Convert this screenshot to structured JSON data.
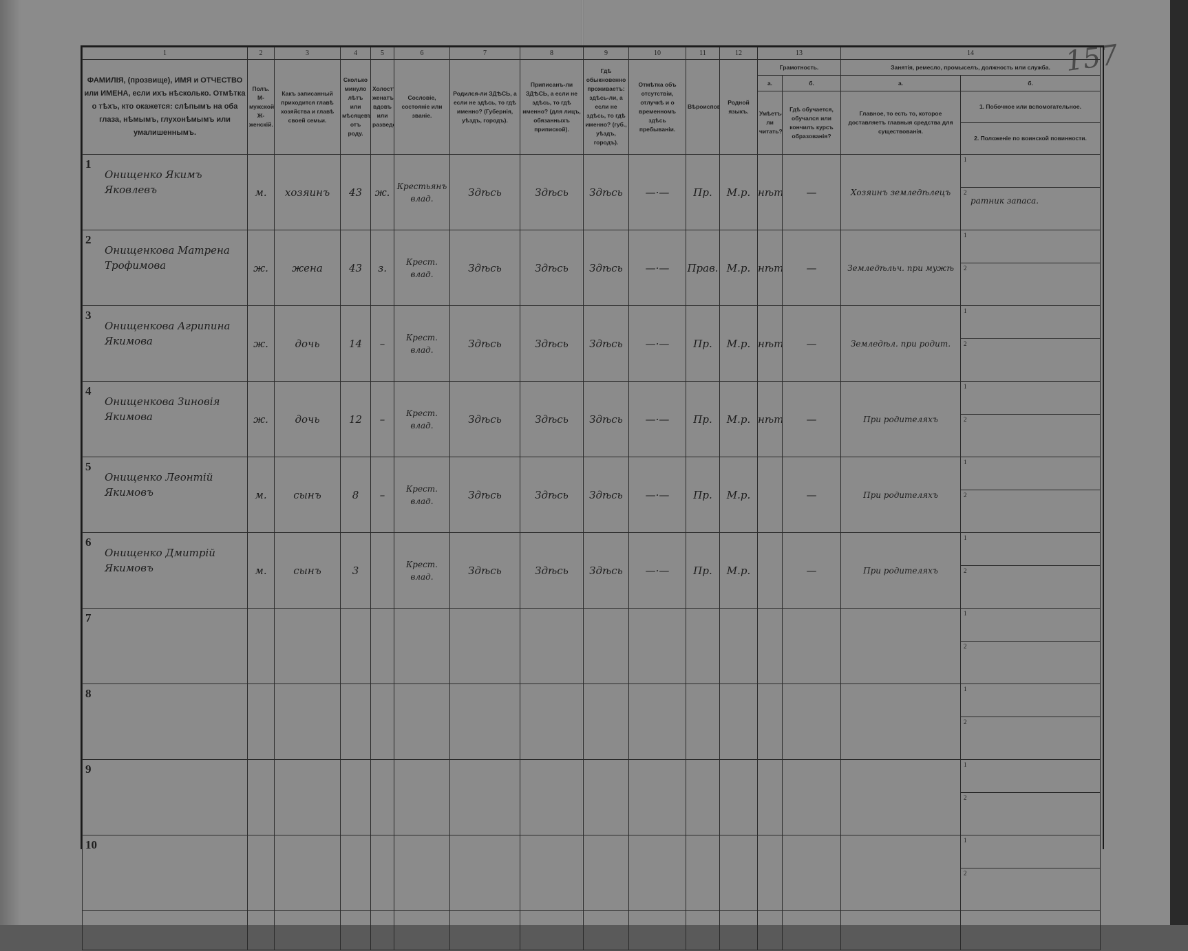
{
  "page_number_handwritten": "157",
  "header": {
    "column_numbers": [
      "1",
      "2",
      "3",
      "4",
      "5",
      "6",
      "7",
      "8",
      "9",
      "10",
      "11",
      "12",
      "13",
      "14"
    ],
    "col1": "ФАМИЛІЯ, (прозвище), ИМЯ и ОТЧЕСТВО или ИМЕНА, если ихъ нѣсколько. Отмѣтка о тѣхъ, кто окажется: слѣпымъ на оба глаза, нѣмымъ, глухонѣмымъ или умалишеннымъ.",
    "col2": "Полъ. М-мужской. Ж-женскій.",
    "col3": "Какъ записанный приходится главѣ хозяйства и главѣ своей семьи.",
    "col4": "Сколько минуло лѣтъ или мѣсяцевъ отъ роду.",
    "col5": "Холостъ, женатъ, вдовъ или разведенъ.",
    "col6": "Сословіе, состояніе или званіе.",
    "col7": "Родился-ли ЗДѢСЬ, а если не здѣсь, то гдѣ именно? (Губернія, уѣздъ, городъ).",
    "col8": "Приписанъ-ли ЗДѢСЬ, а если не здѣсь, то гдѣ именно? (для лицъ, обязанныхъ припиской).",
    "col9": "Гдѣ обыкновенно проживаетъ: здѣсь-ли, а если не здѣсь, то гдѣ именно? (губ., уѣздъ, городъ).",
    "col10": "Отмѣтка объ отсутствіи, отлучкѣ и о временномъ здѣсь пребываніи.",
    "col11": "Вѣроисповѣданіе.",
    "col12": "Родной языкъ.",
    "col13": {
      "title": "Грамотность.",
      "a_label": "а.",
      "b_label": "б.",
      "a": "Умѣетъ-ли читать?",
      "b": "Гдѣ обучается, обучался или кончилъ курсъ образованія?"
    },
    "col14": {
      "title": "Занятія, ремесло, промыселъ, должность или служба.",
      "a_label": "а.",
      "b_label": "б.",
      "a": "Главное, то есть то, которое доставляетъ главныя средства для существованія.",
      "b1": "1. Побочное или вспомогательное.",
      "b2": "2. Положеніе по воинской повинности."
    }
  },
  "sub_labels": [
    "1",
    "2"
  ],
  "rows": [
    {
      "n": "1",
      "name": "Онищенко Якимъ Яковлевъ",
      "sex": "м.",
      "relation": "хозяинъ",
      "age": "43",
      "marital": "ж.",
      "estate": "Крестьянъ влад.",
      "born": "Здѣсь",
      "registered": "Здѣсь",
      "resides": "Здѣсь",
      "absence": "—·—",
      "religion": "Пр.",
      "language": "М.р.",
      "literate": "нѣтъ",
      "school": "—",
      "occupation": "Хозяинъ земледѣлецъ",
      "secondary": "",
      "military": "ратник запаса."
    },
    {
      "n": "2",
      "name": "Онищенкова Матрена Трофимова",
      "sex": "ж.",
      "relation": "жена",
      "age": "43",
      "marital": "з.",
      "estate": "Крест. влад.",
      "born": "Здѣсь",
      "registered": "Здѣсь",
      "resides": "Здѣсь",
      "absence": "—·—",
      "religion": "Прав.",
      "language": "М.р.",
      "literate": "нѣтъ",
      "school": "—",
      "occupation": "Земледѣльч. при мужѣ",
      "secondary": "",
      "military": ""
    },
    {
      "n": "3",
      "name": "Онищенкова Агрипина Якимова",
      "sex": "ж.",
      "relation": "дочь",
      "age": "14",
      "marital": "–",
      "estate": "Крест. влад.",
      "born": "Здѣсь",
      "registered": "Здѣсь",
      "resides": "Здѣсь",
      "absence": "—·—",
      "religion": "Пр.",
      "language": "М.р.",
      "literate": "нѣтъ",
      "school": "—",
      "occupation": "Земледѣл. при родит.",
      "secondary": "",
      "military": ""
    },
    {
      "n": "4",
      "name": "Онищенкова Зиновія Якимова",
      "sex": "ж.",
      "relation": "дочь",
      "age": "12",
      "marital": "–",
      "estate": "Крест. влад.",
      "born": "Здѣсь",
      "registered": "Здѣсь",
      "resides": "Здѣсь",
      "absence": "—·—",
      "religion": "Пр.",
      "language": "М.р.",
      "literate": "нѣтъ",
      "school": "—",
      "occupation": "При родителяхъ",
      "secondary": "",
      "military": ""
    },
    {
      "n": "5",
      "name": "Онищенко Леонтій Якимовъ",
      "sex": "м.",
      "relation": "сынъ",
      "age": "8",
      "marital": "–",
      "estate": "Крест. влад.",
      "born": "Здѣсь",
      "registered": "Здѣсь",
      "resides": "Здѣсь",
      "absence": "—·—",
      "religion": "Пр.",
      "language": "М.р.",
      "literate": "",
      "school": "—",
      "occupation": "При родителяхъ",
      "secondary": "",
      "military": ""
    },
    {
      "n": "6",
      "name": "Онищенко Дмитрій Якимовъ",
      "sex": "м.",
      "relation": "сынъ",
      "age": "3",
      "marital": "",
      "estate": "Крест. влад.",
      "born": "Здѣсь",
      "registered": "Здѣсь",
      "resides": "Здѣсь",
      "absence": "—·—",
      "religion": "Пр.",
      "language": "М.р.",
      "literate": "",
      "school": "—",
      "occupation": "При родителяхъ",
      "secondary": "",
      "military": ""
    },
    {
      "n": "7"
    },
    {
      "n": "8"
    },
    {
      "n": "9"
    },
    {
      "n": "10"
    }
  ]
}
